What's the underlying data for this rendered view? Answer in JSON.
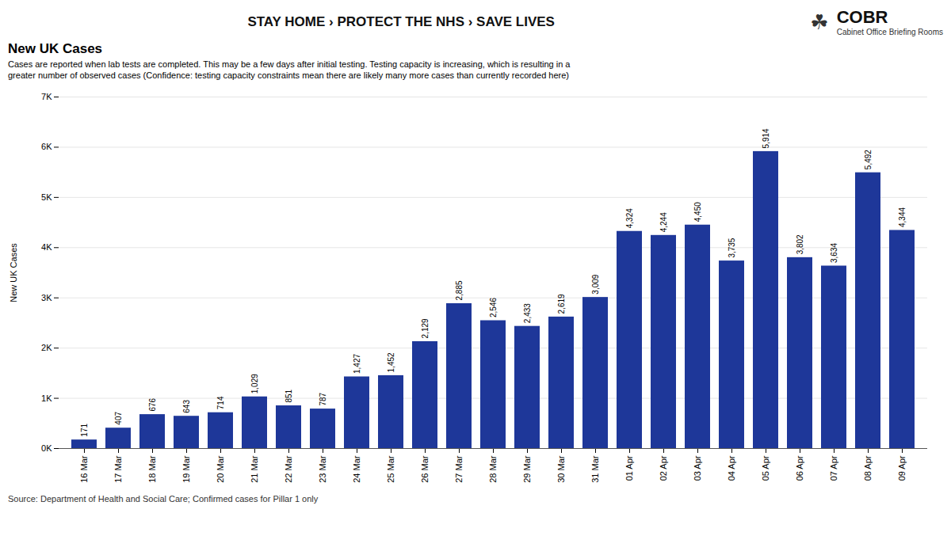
{
  "chart_data": {
    "type": "bar",
    "title": "New UK Cases",
    "subtitle": [
      "Cases are reported when lab tests are completed. This may be a few days after initial testing. Testing capacity is increasing, which is resulting in a",
      "greater number of observed cases (Confidence: testing capacity constraints mean there are likely many more cases than currently recorded here)"
    ],
    "annotations": [
      "STAY HOME › PROTECT THE NHS › SAVE LIVES",
      "☘",
      "COBR",
      "Cabinet Office Briefing Rooms"
    ],
    "source": "Source: Department of Health and Social Care; Confirmed cases for Pillar 1 only",
    "y_label": "New UK Cases",
    "categories": [
      "16 Mar",
      "17 Mar",
      "18 Mar",
      "19 Mar",
      "20 Mar",
      "21 Mar",
      "22 Mar",
      "23 Mar",
      "24 Mar",
      "25 Mar",
      "26 Mar",
      "27 Mar",
      "28 Mar",
      "29 Mar",
      "30 Mar",
      "31 Mar",
      "01 Apr",
      "02 Apr",
      "03 Apr",
      "04 Apr",
      "05 Apr",
      "06 Apr",
      "07 Apr",
      "08 Apr",
      "09 Apr"
    ],
    "values": [
      171,
      407,
      676,
      643,
      714,
      1029,
      851,
      787,
      1427,
      1452,
      2129,
      2885,
      2546,
      2433,
      2619,
      3009,
      4324,
      4244,
      4450,
      3735,
      5914,
      3802,
      3634,
      5492,
      4344
    ],
    "value_labels": [
      "171",
      "407",
      "676",
      "643",
      "714",
      "1,029",
      "851",
      "787",
      "1,427",
      "1,452",
      "2,129",
      "2,885",
      "2,546",
      "2,433",
      "2,619",
      "3,009",
      "4,324",
      "4,244",
      "4,450",
      "3,735",
      "5,914",
      "3,802",
      "3,634",
      "5,492",
      "4,344"
    ],
    "color": "#1e3799",
    "ylim": [
      0,
      7000
    ],
    "yticks": [
      {
        "value": 0,
        "label": "0K"
      },
      {
        "value": 1000,
        "label": "1K"
      },
      {
        "value": 2000,
        "label": "2K"
      },
      {
        "value": 3000,
        "label": "3K"
      },
      {
        "value": 4000,
        "label": "4K"
      },
      {
        "value": 5000,
        "label": "5K"
      },
      {
        "value": 6000,
        "label": "6K"
      },
      {
        "value": 7000,
        "label": "7K"
      }
    ],
    "grid": true,
    "data_labels": true
  }
}
